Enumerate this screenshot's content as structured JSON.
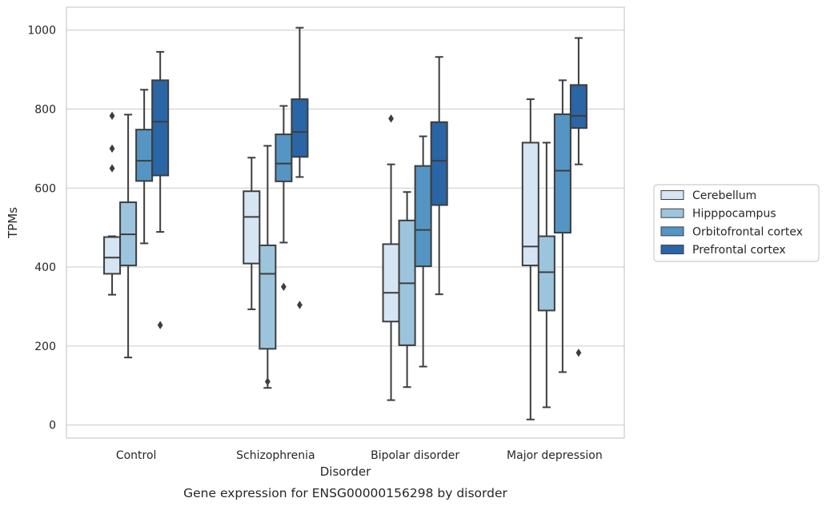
{
  "chart_data": {
    "type": "box",
    "title": "",
    "caption": "Gene expression for ENSG00000156298 by disorder",
    "xlabel": "Disorder",
    "ylabel": "TPMs",
    "ylim": [
      -33,
      1058
    ],
    "yticks": [
      0,
      200,
      400,
      600,
      800,
      1000
    ],
    "grid": "horizontal",
    "legend_position": "right",
    "categories": [
      "Control",
      "Schizophrenia",
      "Bipolar disorder",
      "Major depression"
    ],
    "series": [
      {
        "name": "Cerebellum",
        "color": "#d6e5f4",
        "boxes": [
          {
            "whisker_low": 330,
            "q1": 383,
            "median": 424,
            "q3": 476,
            "whisker_high": 478,
            "outliers": [
              650,
              700,
              783
            ]
          },
          {
            "whisker_low": 293,
            "q1": 409,
            "median": 527,
            "q3": 592,
            "whisker_high": 677,
            "outliers": []
          },
          {
            "whisker_low": 63,
            "q1": 262,
            "median": 335,
            "q3": 458,
            "whisker_high": 660,
            "outliers": [
              776
            ]
          },
          {
            "whisker_low": 14,
            "q1": 404,
            "median": 452,
            "q3": 715,
            "whisker_high": 825,
            "outliers": []
          }
        ]
      },
      {
        "name": "Hipppocampus",
        "color": "#9dc4dd",
        "boxes": [
          {
            "whisker_low": 171,
            "q1": 404,
            "median": 483,
            "q3": 564,
            "whisker_high": 786,
            "outliers": []
          },
          {
            "whisker_low": 94,
            "q1": 193,
            "median": 383,
            "q3": 455,
            "whisker_high": 707,
            "outliers": [
              110
            ]
          },
          {
            "whisker_low": 96,
            "q1": 202,
            "median": 359,
            "q3": 518,
            "whisker_high": 590,
            "outliers": []
          },
          {
            "whisker_low": 45,
            "q1": 290,
            "median": 387,
            "q3": 478,
            "whisker_high": 715,
            "outliers": []
          }
        ]
      },
      {
        "name": "Orbitofrontal cortex",
        "color": "#5595c3",
        "boxes": [
          {
            "whisker_low": 460,
            "q1": 618,
            "median": 669,
            "q3": 748,
            "whisker_high": 849,
            "outliers": []
          },
          {
            "whisker_low": 462,
            "q1": 617,
            "median": 662,
            "q3": 736,
            "whisker_high": 808,
            "outliers": [
              350
            ]
          },
          {
            "whisker_low": 148,
            "q1": 402,
            "median": 494,
            "q3": 656,
            "whisker_high": 731,
            "outliers": []
          },
          {
            "whisker_low": 134,
            "q1": 487,
            "median": 644,
            "q3": 787,
            "whisker_high": 873,
            "outliers": []
          }
        ]
      },
      {
        "name": "Prefrontal cortex",
        "color": "#2a65a5",
        "boxes": [
          {
            "whisker_low": 489,
            "q1": 632,
            "median": 768,
            "q3": 873,
            "whisker_high": 945,
            "outliers": [
              253
            ]
          },
          {
            "whisker_low": 628,
            "q1": 679,
            "median": 742,
            "q3": 825,
            "whisker_high": 1006,
            "outliers": [
              304
            ]
          },
          {
            "whisker_low": 331,
            "q1": 557,
            "median": 669,
            "q3": 767,
            "whisker_high": 932,
            "outliers": []
          },
          {
            "whisker_low": 660,
            "q1": 752,
            "median": 783,
            "q3": 861,
            "whisker_high": 980,
            "outliers": [
              183
            ]
          }
        ]
      }
    ]
  }
}
